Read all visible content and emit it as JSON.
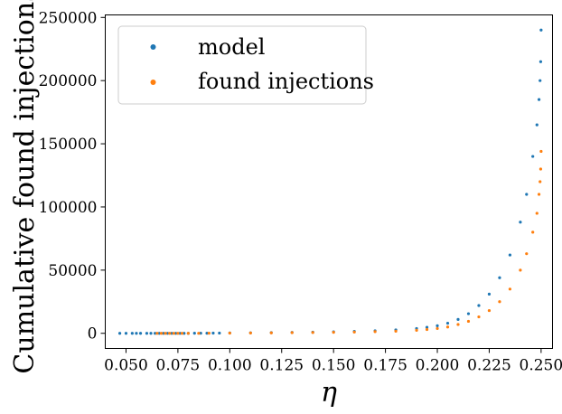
{
  "chart_data": {
    "type": "scatter",
    "title": "",
    "xlabel": "η",
    "ylabel": "Cumulative found injections",
    "xlim": [
      0.04,
      0.2555
    ],
    "ylim": [
      -12000,
      252000
    ],
    "xticks": [
      0.05,
      0.075,
      0.1,
      0.125,
      0.15,
      0.175,
      0.2,
      0.225,
      0.25
    ],
    "xtick_labels": [
      "0.050",
      "0.075",
      "0.100",
      "0.125",
      "0.150",
      "0.175",
      "0.200",
      "0.225",
      "0.250"
    ],
    "yticks": [
      0,
      50000,
      100000,
      150000,
      200000,
      250000
    ],
    "ytick_labels": [
      "0",
      "50000",
      "100000",
      "150000",
      "200000",
      "250000"
    ],
    "legend_position": "upper-left",
    "series": [
      {
        "name": "model",
        "color": "#1f77b4",
        "x": [
          0.047,
          0.05,
          0.053,
          0.055,
          0.057,
          0.06,
          0.062,
          0.064,
          0.066,
          0.068,
          0.07,
          0.072,
          0.074,
          0.076,
          0.078,
          0.08,
          0.083,
          0.086,
          0.089,
          0.092,
          0.095,
          0.1,
          0.11,
          0.12,
          0.13,
          0.14,
          0.15,
          0.16,
          0.17,
          0.18,
          0.19,
          0.195,
          0.2,
          0.205,
          0.21,
          0.215,
          0.22,
          0.225,
          0.23,
          0.235,
          0.24,
          0.243,
          0.246,
          0.248,
          0.249,
          0.2495,
          0.2498,
          0.25
        ],
        "y": [
          0,
          0,
          0,
          0,
          0,
          0,
          0,
          0,
          0,
          0,
          0,
          0,
          0,
          0,
          0,
          0,
          50,
          80,
          100,
          150,
          200,
          300,
          400,
          500,
          700,
          900,
          1200,
          1500,
          2000,
          2700,
          3800,
          4700,
          6000,
          8000,
          11000,
          15500,
          22000,
          31000,
          44000,
          62000,
          88000,
          110000,
          140000,
          165000,
          185000,
          200000,
          215000,
          240000
        ]
      },
      {
        "name": "found injections",
        "color": "#ff7f0e",
        "x": [
          0.065,
          0.067,
          0.069,
          0.071,
          0.073,
          0.075,
          0.077,
          0.08,
          0.085,
          0.09,
          0.1,
          0.11,
          0.12,
          0.13,
          0.14,
          0.15,
          0.16,
          0.17,
          0.18,
          0.19,
          0.195,
          0.2,
          0.205,
          0.21,
          0.215,
          0.22,
          0.225,
          0.23,
          0.235,
          0.24,
          0.243,
          0.246,
          0.248,
          0.249,
          0.2495,
          0.2498,
          0.25
        ],
        "y": [
          0,
          0,
          0,
          0,
          0,
          0,
          0,
          10,
          30,
          60,
          150,
          250,
          350,
          500,
          650,
          800,
          1000,
          1300,
          1700,
          2400,
          3000,
          3800,
          5000,
          7000,
          9500,
          13000,
          18000,
          25000,
          35000,
          50000,
          63000,
          80000,
          95000,
          110000,
          120000,
          130000,
          144000
        ]
      }
    ]
  }
}
